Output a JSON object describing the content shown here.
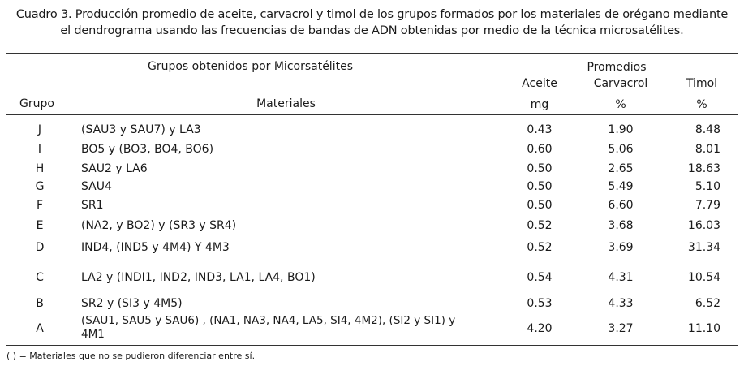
{
  "caption": {
    "line1": "Cuadro 3. Producción promedio de aceite, carvacrol y timol de los grupos formados por los materiales de orégano mediante",
    "line2": "el dendrograma usando las frecuencias de bandas de ADN obtenidas por medio de la técnica microsatélites."
  },
  "header": {
    "groups_title": "Grupos obtenidos por Micorsatélites",
    "promedios": "Promedios",
    "aceite": "Aceite",
    "carvacrol": "Carvacrol",
    "timol": "Timol",
    "grupo": "Grupo",
    "materiales": "Materiales",
    "unit_aceite": "mg",
    "unit_carvacrol": "%",
    "unit_timol": "%"
  },
  "rows": [
    {
      "grupo": "J",
      "materiales": "(SAU3 y SAU7) y LA3",
      "aceite": "0.43",
      "carvacrol": "1.90",
      "timol": "8.48"
    },
    {
      "grupo": "I",
      "materiales": "BO5 y (BO3, BO4, BO6)",
      "aceite": "0.60",
      "carvacrol": "5.06",
      "timol": "8.01"
    },
    {
      "grupo": "H",
      "materiales": "SAU2 y LA6",
      "aceite": "0.50",
      "carvacrol": "2.65",
      "timol": "18.63"
    },
    {
      "grupo": "G",
      "materiales": "SAU4",
      "aceite": "0.50",
      "carvacrol": "5.49",
      "timol": "5.10"
    },
    {
      "grupo": "F",
      "materiales": "SR1",
      "aceite": "0.50",
      "carvacrol": "6.60",
      "timol": "7.79"
    },
    {
      "grupo": "E",
      "materiales": "(NA2, y BO2) y (SR3 y  SR4)",
      "aceite": "0.52",
      "carvacrol": "3.68",
      "timol": "16.03"
    },
    {
      "grupo": "D",
      "materiales": "IND4, (IND5 y 4M4) Y 4M3",
      "aceite": "0.52",
      "carvacrol": "3.69",
      "timol": "31.34"
    },
    {
      "grupo": "C",
      "materiales": "LA2 y (INDI1, IND2, IND3, LA1, LA4, BO1)",
      "aceite": "0.54",
      "carvacrol": "4.31",
      "timol": "10.54"
    },
    {
      "grupo": "B",
      "materiales": "SR2 y (SI3 y 4M5)",
      "aceite": "0.53",
      "carvacrol": "4.33",
      "timol": "6.52"
    },
    {
      "grupo": "A",
      "materiales": "(SAU1, SAU5 y SAU6) , (NA1, NA3, NA4, LA5, SI4, 4M2), (SI2 y SI1) y",
      "materiales_line2": "4M1",
      "aceite": "4.20",
      "carvacrol": "3.27",
      "timol": "11.10"
    }
  ],
  "footnote": "( ) = Materiales que no se pudieron diferenciar entre sí."
}
